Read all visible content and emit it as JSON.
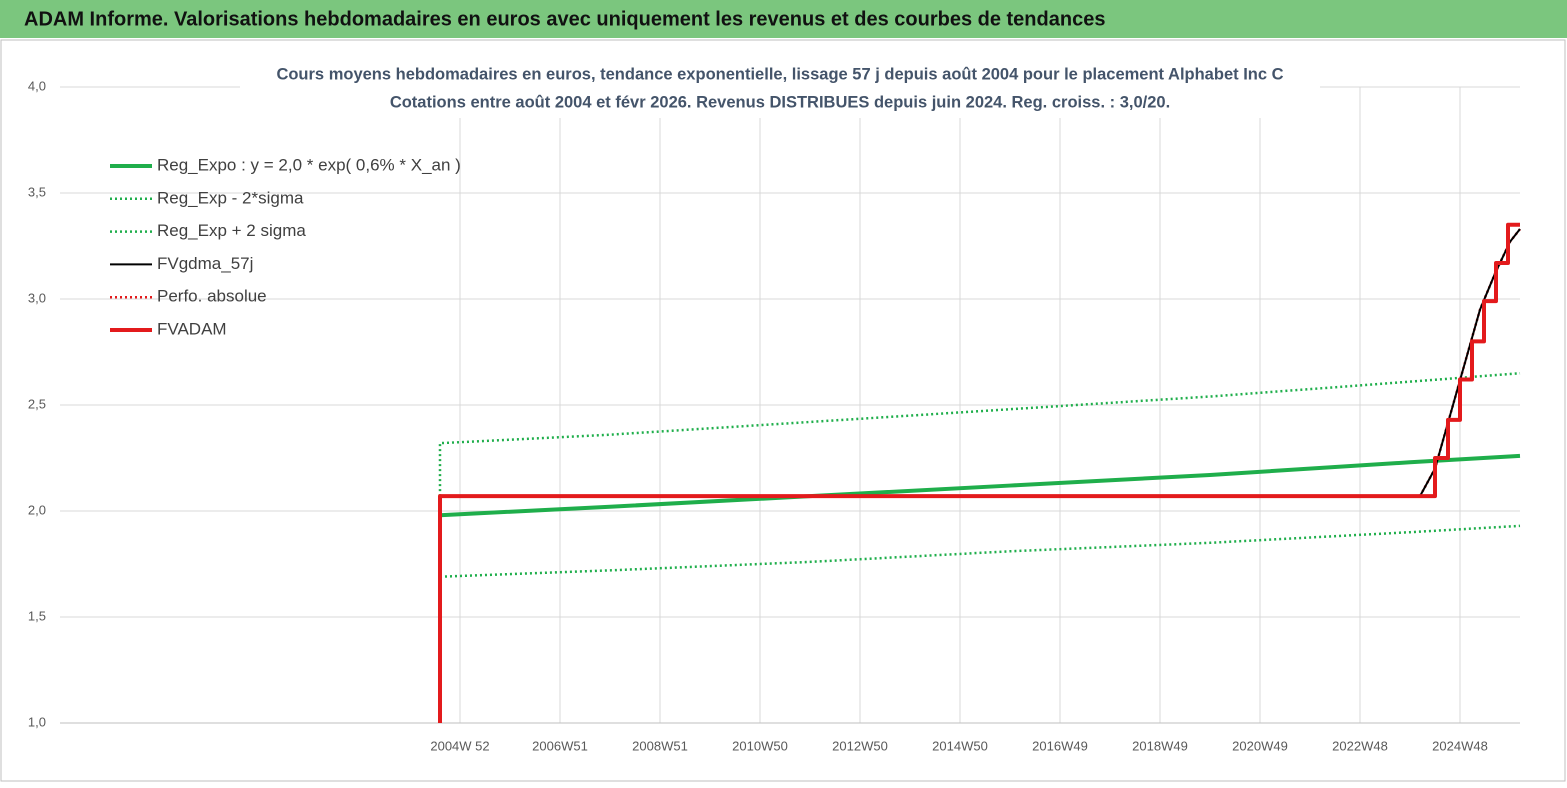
{
  "header": {
    "title": "ADAM Informe. Valorisations hebdomadaires en euros avec uniquement les revenus et des courbes de tendances"
  },
  "chart_data": {
    "type": "line",
    "title": "Cours moyens hebdomadaires en euros, tendance exponentielle, lissage 57 j depuis août 2004 pour le placement Alphabet Inc C",
    "subtitle": "Cotations entre août 2004 et févr 2026. Revenus DISTRIBUES depuis juin 2024. Reg. croiss. : 3,0/20.",
    "xlim": [
      1997,
      2026.2
    ],
    "xticks": [
      {
        "value": 2005,
        "label": "2004W 52"
      },
      {
        "value": 2007,
        "label": "2006W51"
      },
      {
        "value": 2009,
        "label": "2008W51"
      },
      {
        "value": 2011,
        "label": "2010W50"
      },
      {
        "value": 2013,
        "label": "2012W50"
      },
      {
        "value": 2015,
        "label": "2014W50"
      },
      {
        "value": 2017,
        "label": "2016W49"
      },
      {
        "value": 2019,
        "label": "2018W49"
      },
      {
        "value": 2021,
        "label": "2020W49"
      },
      {
        "value": 2023,
        "label": "2022W48"
      },
      {
        "value": 2025,
        "label": "2024W48"
      }
    ],
    "ylim": [
      1,
      4
    ],
    "yticks": [
      {
        "value": 1,
        "label": "1,0"
      },
      {
        "value": 1.5,
        "label": "1,5"
      },
      {
        "value": 2,
        "label": "2,0"
      },
      {
        "value": 2.5,
        "label": "2,5"
      },
      {
        "value": 3,
        "label": "3,0"
      },
      {
        "value": 3.5,
        "label": "3,5"
      },
      {
        "value": 4,
        "label": "4,0"
      }
    ],
    "grid": true,
    "legend": "top-left",
    "series": [
      {
        "name": "Reg_Expo : y = 2,0 * exp( 0,6% *  X_an )",
        "color": "#1fae4b",
        "line_style": "thick",
        "x": [
          2004.6,
          2008,
          2012,
          2016,
          2020,
          2024,
          2026.2
        ],
        "values": [
          1.98,
          2.02,
          2.07,
          2.12,
          2.17,
          2.23,
          2.26
        ]
      },
      {
        "name": "Reg_Exp - 2*sigma",
        "color": "#1fae4b",
        "line_style": "dotted",
        "x": [
          2004.6,
          2008,
          2012,
          2016,
          2020,
          2024,
          2026.2
        ],
        "values": [
          1.69,
          1.72,
          1.76,
          1.81,
          1.85,
          1.9,
          1.93
        ]
      },
      {
        "name": "Reg_Exp + 2 sigma",
        "color": "#1fae4b",
        "line_style": "dotted",
        "x": [
          2004.6,
          2004.6,
          2008,
          2012,
          2016,
          2020,
          2024,
          2026.2
        ],
        "values": [
          2.07,
          2.32,
          2.36,
          2.42,
          2.48,
          2.54,
          2.61,
          2.65
        ]
      },
      {
        "name": "FVgdma_57j",
        "color": "#000000",
        "line_style": "thin",
        "x": [
          2004.6,
          2024.2,
          2024.5,
          2024.8,
          2025.1,
          2025.4,
          2025.7,
          2026,
          2026.2
        ],
        "values": [
          2.07,
          2.07,
          2.2,
          2.45,
          2.7,
          2.95,
          3.12,
          3.27,
          3.33
        ]
      },
      {
        "name": "Perfo. absolue",
        "color": "#e31a1c",
        "line_style": "dotted",
        "x": [
          2004.6,
          2024.2,
          2024.5,
          2024.8,
          2025.1,
          2025.4,
          2025.7,
          2026,
          2026.2
        ],
        "values": [
          2.07,
          2.07,
          2.2,
          2.45,
          2.7,
          2.95,
          3.12,
          3.27,
          3.33
        ]
      },
      {
        "name": "FVADAM",
        "color": "#e31a1c",
        "line_style": "thick",
        "x": [
          2004.6,
          2004.6,
          2024.5,
          2024.5,
          2024.76,
          2024.76,
          2025,
          2025,
          2025.24,
          2025.24,
          2025.48,
          2025.48,
          2025.72,
          2025.72,
          2025.96,
          2025.96,
          2026.2
        ],
        "values": [
          1,
          2.07,
          2.07,
          2.25,
          2.25,
          2.43,
          2.43,
          2.62,
          2.62,
          2.8,
          2.8,
          2.99,
          2.99,
          3.17,
          3.17,
          3.35,
          3.35
        ]
      }
    ]
  }
}
